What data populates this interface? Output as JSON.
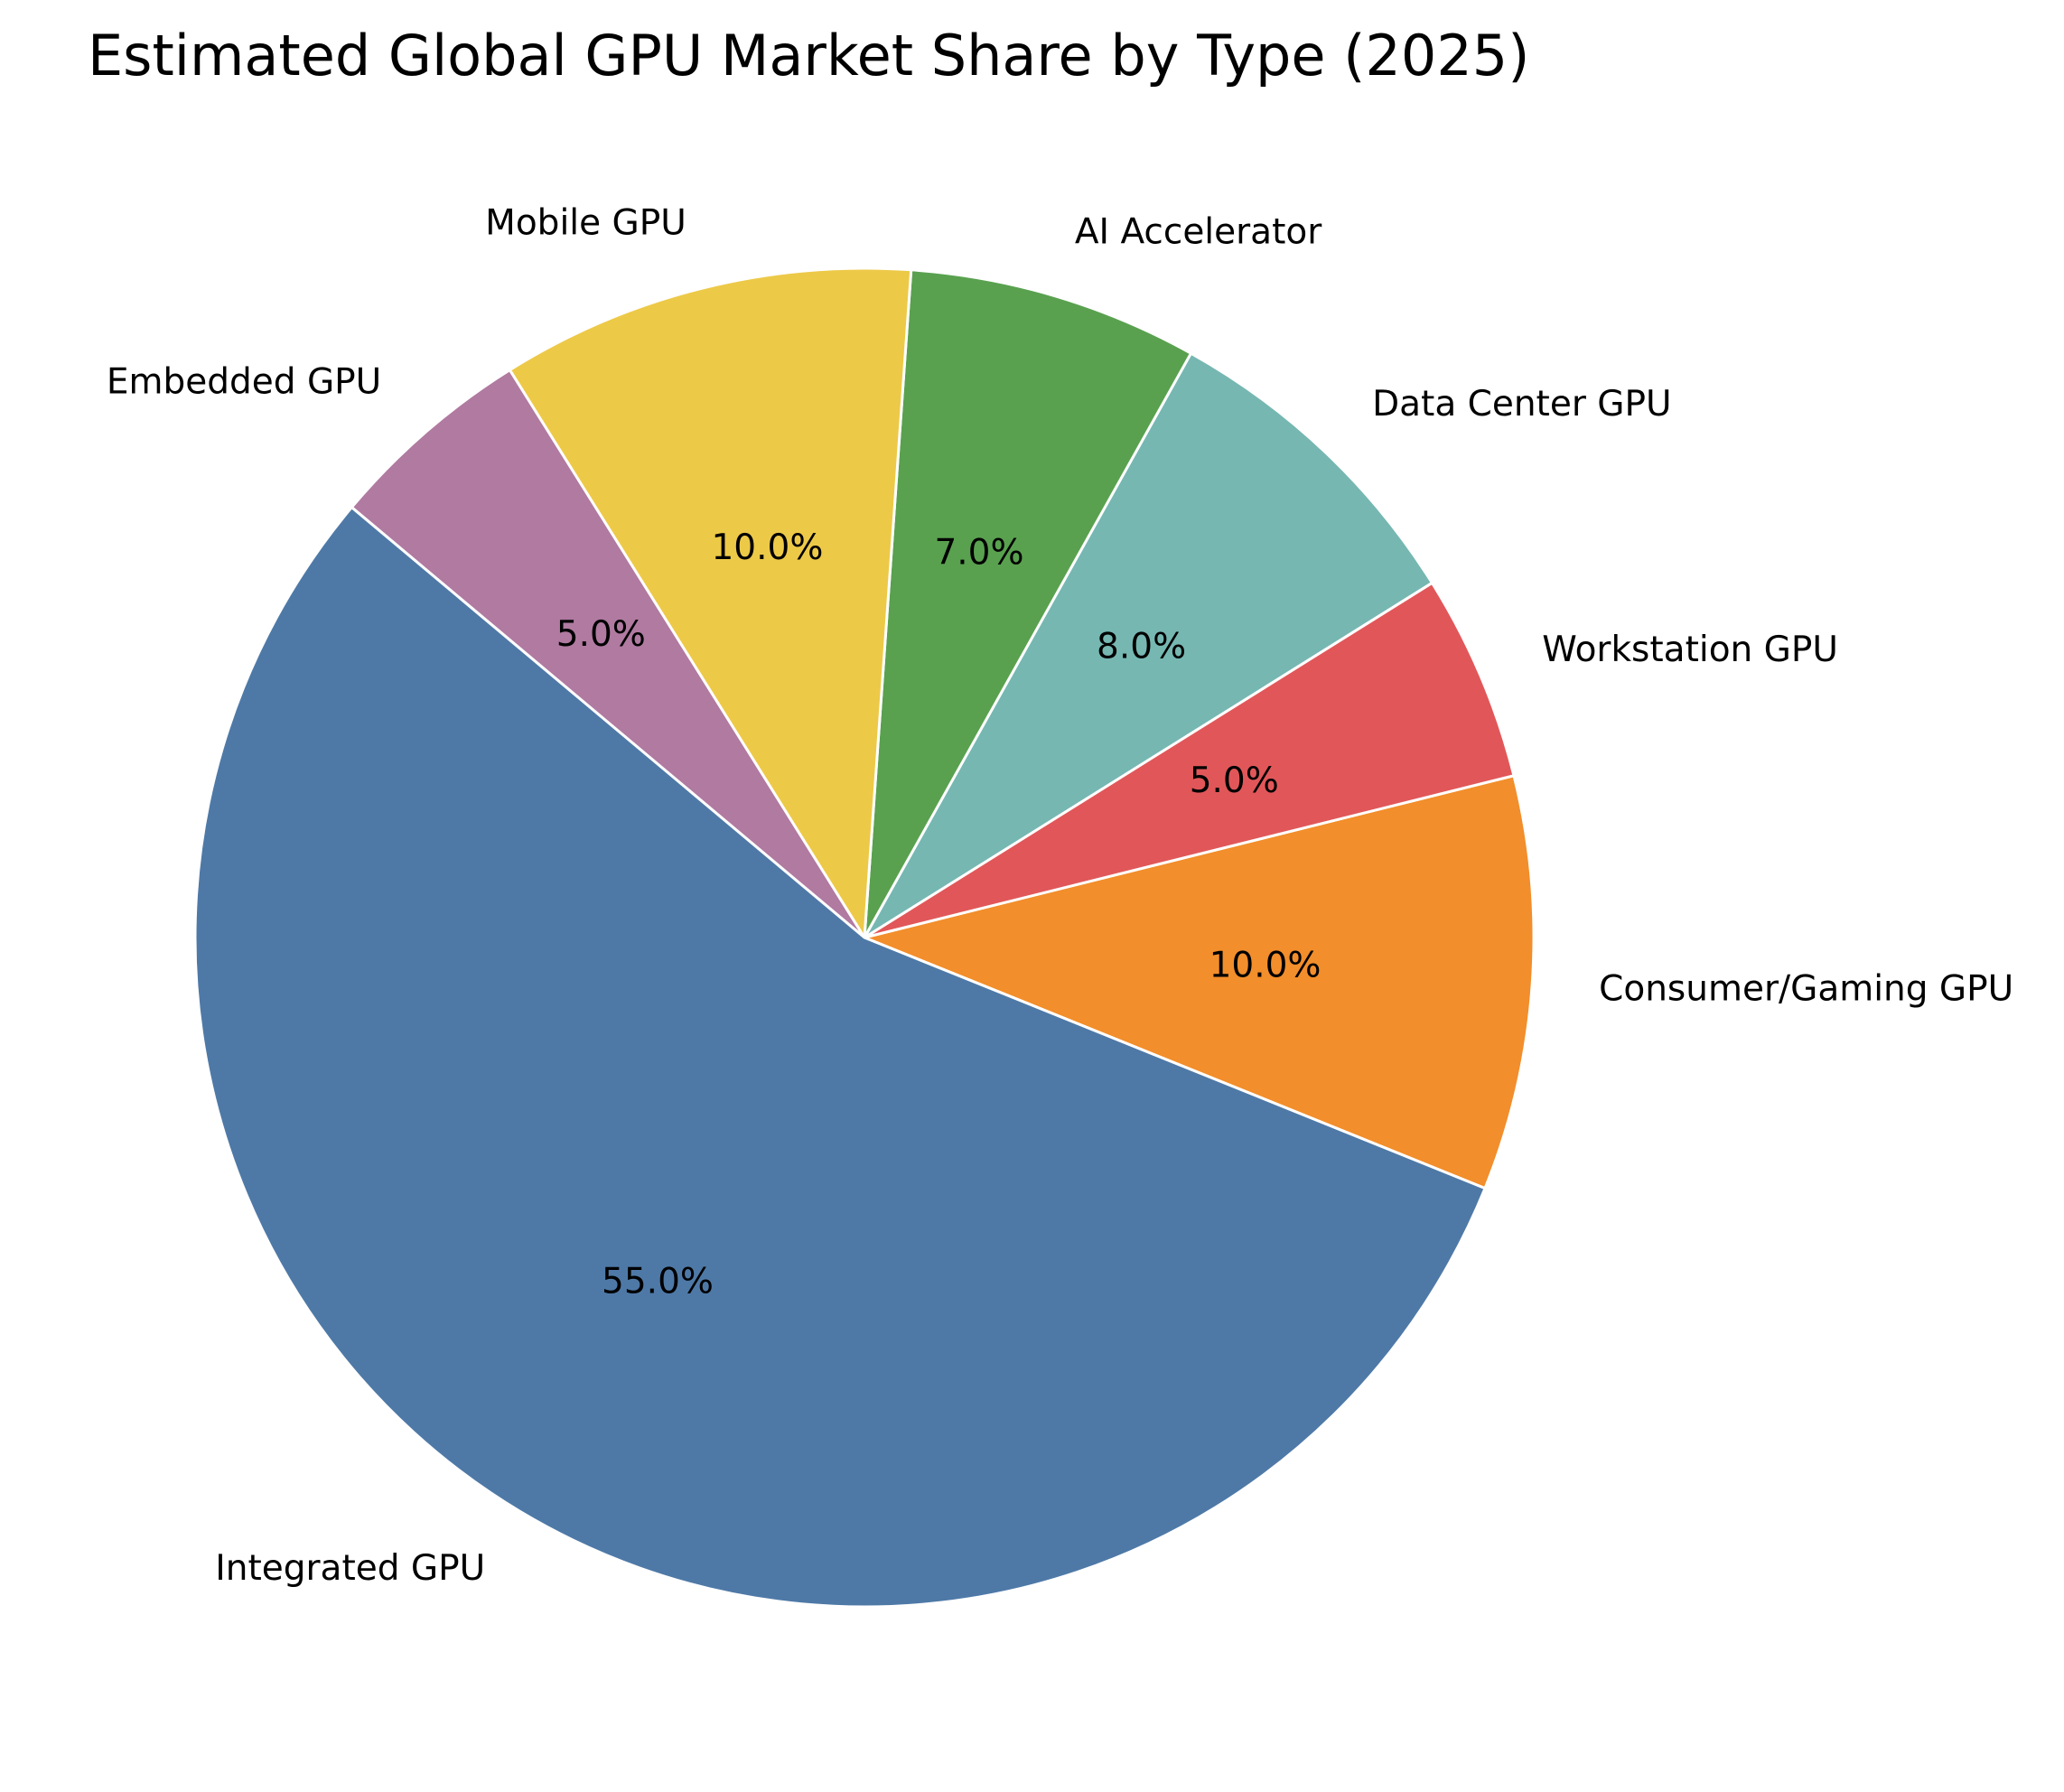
{
  "chart_data": {
    "type": "pie",
    "title": "Estimated Global GPU Market Share by Type (2025)",
    "categories": [
      "Consumer/Gaming GPU",
      "Workstation GPU",
      "Data Center GPU",
      "AI Accelerator",
      "Mobile GPU",
      "Embedded GPU",
      "Integrated GPU"
    ],
    "values": [
      10,
      5,
      8,
      7,
      10,
      5,
      55
    ],
    "percent_labels": [
      "10.0%",
      "5.0%",
      "8.0%",
      "7.0%",
      "10.0%",
      "5.0%",
      "55.0%"
    ],
    "colors": [
      "#f28e2b",
      "#e15759",
      "#76b7b2",
      "#59a14f",
      "#edc948",
      "#b07aa1",
      "#4e79a7"
    ],
    "wedge_edge_color": "#ffffff",
    "start_angle_deg": -22,
    "direction": "counterclockwise",
    "legend": "none"
  }
}
